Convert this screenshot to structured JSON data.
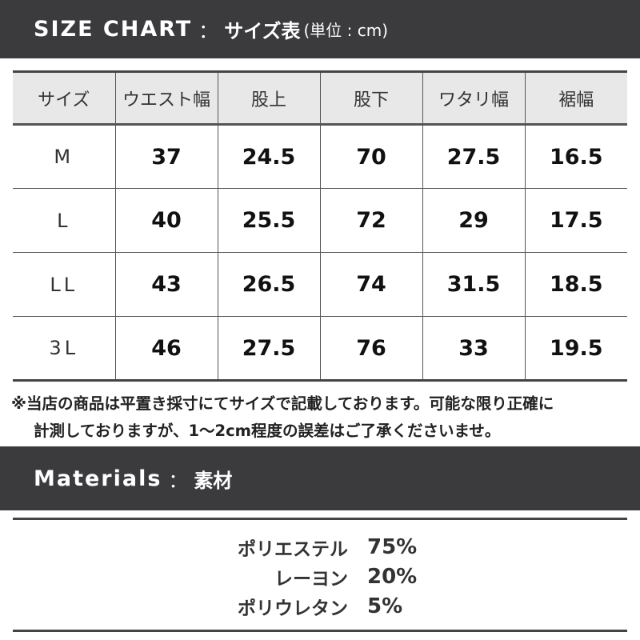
{
  "size_chart": {
    "title_en": "SIZE CHART",
    "separator": "：",
    "title_jp": "サイズ表",
    "unit": "(単位 : cm)",
    "columns": [
      "サイズ",
      "ウエスト幅",
      "股上",
      "股下",
      "ワタリ幅",
      "裾幅"
    ],
    "rows": [
      [
        "M",
        "37",
        "24.5",
        "70",
        "27.5",
        "16.5"
      ],
      [
        "L",
        "40",
        "25.5",
        "72",
        "29",
        "17.5"
      ],
      [
        "LL",
        "43",
        "26.5",
        "74",
        "31.5",
        "18.5"
      ],
      [
        "3L",
        "46",
        "27.5",
        "76",
        "33",
        "19.5"
      ]
    ],
    "note_line1": "※当店の商品は平置き採寸にてサイズで記載しております。可能な限り正確に",
    "note_line2": "計測しておりますが、1〜2cm程度の誤差はご了承くださいませ。"
  },
  "materials": {
    "title_en": "Materials",
    "separator": "：",
    "title_jp": "素材",
    "items": [
      {
        "name": "ポリエステル",
        "percent": "75%"
      },
      {
        "name": "レーヨン",
        "percent": "20%"
      },
      {
        "name": "ポリウレタン",
        "percent": "5%"
      }
    ]
  }
}
